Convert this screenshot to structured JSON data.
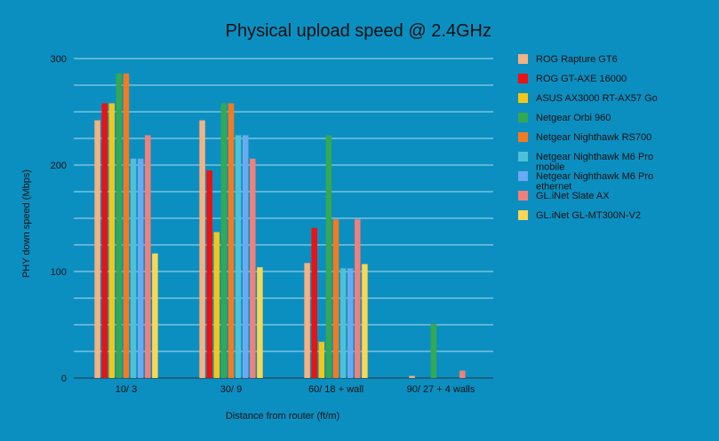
{
  "chart_data": {
    "type": "bar",
    "title": "Physical upload speed @ 2.4GHz",
    "xlabel": "Distance from router (ft/m)",
    "ylabel": "PHY down speed (Mbps)",
    "ylim": [
      0,
      300
    ],
    "yticks": [
      0,
      100,
      200,
      300
    ],
    "minor_grid_step": 25,
    "grid": true,
    "legend_position": "right",
    "categories": [
      "10/ 3",
      "30/ 9",
      "60/ 18 + wall",
      "90/ 27 + 4 walls"
    ],
    "series": [
      {
        "name": "ROG Rapture GT6",
        "color": "#f4b183",
        "values": [
          242,
          242,
          108,
          2
        ]
      },
      {
        "name": "ROG GT-AXE 16000",
        "color": "#ee1111",
        "values": [
          258,
          195,
          141,
          0
        ]
      },
      {
        "name": "ASUS AX3000 RT-AX57 Go",
        "color": "#f5c518",
        "values": [
          258,
          137,
          34,
          0
        ]
      },
      {
        "name": "Netgear Orbi 960",
        "color": "#34a853",
        "values": [
          286,
          258,
          228,
          51
        ]
      },
      {
        "name": "Netgear Nighthawk RS700",
        "color": "#f47a1f",
        "values": [
          286,
          258,
          149,
          0
        ]
      },
      {
        "name": "Netgear Nighthawk M6 Pro mobile",
        "color": "#4fc1d6",
        "values": [
          206,
          228,
          103,
          0
        ]
      },
      {
        "name": "Netgear Nighthawk M6 Pro ethernet",
        "color": "#6aaaf0",
        "values": [
          206,
          228,
          103,
          0
        ]
      },
      {
        "name": "GL.iNet Slate AX",
        "color": "#f0807a",
        "values": [
          228,
          206,
          149,
          7
        ]
      },
      {
        "name": "GL.iNet GL-MT300N-V2",
        "color": "#f9d653",
        "values": [
          117,
          104,
          107,
          0
        ]
      }
    ]
  }
}
